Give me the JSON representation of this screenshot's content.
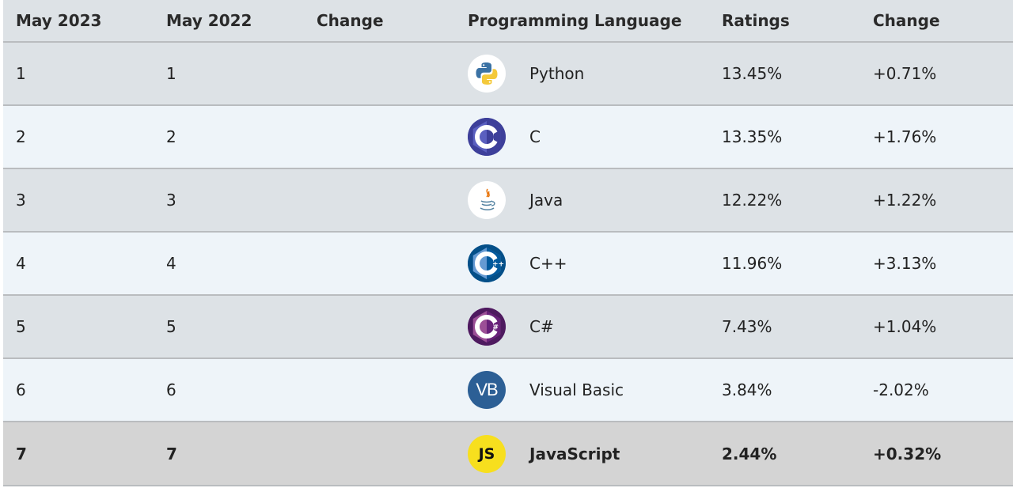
{
  "header": {
    "col1": "May 2023",
    "col2": "May 2022",
    "col3": "Change",
    "col4": "Programming Language",
    "col5": "Ratings",
    "col6": "Change"
  },
  "rows": [
    {
      "may2023": "1",
      "may2022": "1",
      "change_rank": "",
      "language": "Python",
      "icon": "python-logo-icon",
      "rating": "13.45%",
      "change": "+0.71%"
    },
    {
      "may2023": "2",
      "may2022": "2",
      "change_rank": "",
      "language": "C",
      "icon": "c-logo-icon",
      "rating": "13.35%",
      "change": "+1.76%"
    },
    {
      "may2023": "3",
      "may2022": "3",
      "change_rank": "",
      "language": "Java",
      "icon": "java-logo-icon",
      "rating": "12.22%",
      "change": "+1.22%"
    },
    {
      "may2023": "4",
      "may2022": "4",
      "change_rank": "",
      "language": "C++",
      "icon": "cpp-logo-icon",
      "rating": "11.96%",
      "change": "+3.13%"
    },
    {
      "may2023": "5",
      "may2022": "5",
      "change_rank": "",
      "language": "C#",
      "icon": "csharp-logo-icon",
      "rating": "7.43%",
      "change": "+1.04%"
    },
    {
      "may2023": "6",
      "may2022": "6",
      "change_rank": "",
      "language": "Visual Basic",
      "icon": "visual-basic-logo-icon",
      "logo_text": "VB",
      "rating": "3.84%",
      "change": "-2.02%"
    },
    {
      "may2023": "7",
      "may2022": "7",
      "change_rank": "",
      "language": "JavaScript",
      "icon": "javascript-logo-icon",
      "logo_text": "JS",
      "rating": "2.44%",
      "change": "+0.32%"
    }
  ],
  "colors": {
    "header_bg": "#dde2e6",
    "row_grey": "#dde2e6",
    "row_light": "#eef4f9",
    "row_highlight": "#d4d4d4",
    "js_yellow": "#f7df1e",
    "vb_blue": "#2c5f95"
  }
}
